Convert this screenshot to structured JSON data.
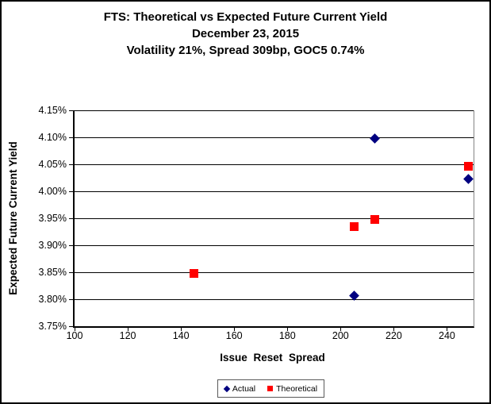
{
  "title": {
    "line1": "FTS: Theoretical vs Expected Future Current Yield",
    "line2": "December 23, 2015",
    "line3": "Volatility 21%, Spread 309bp, GOC5 0.74%"
  },
  "chart_data": {
    "type": "scatter",
    "title": "FTS: Theoretical vs Expected Future Current Yield",
    "subtitle": "December 23, 2015",
    "subtitle2": "Volatility 21%, Spread 309bp, GOC5 0.74%",
    "xlabel": "Issue Reset Spread",
    "ylabel": "Expected Future Current Yield",
    "xlim": [
      100,
      250
    ],
    "ylim": [
      3.75,
      4.15
    ],
    "grid": true,
    "legend_position": "bottom",
    "x_ticks": [
      {
        "v": 100,
        "label": "100"
      },
      {
        "v": 120,
        "label": "120"
      },
      {
        "v": 140,
        "label": "140"
      },
      {
        "v": 160,
        "label": "160"
      },
      {
        "v": 180,
        "label": "180"
      },
      {
        "v": 200,
        "label": "200"
      },
      {
        "v": 220,
        "label": "220"
      },
      {
        "v": 240,
        "label": "240"
      }
    ],
    "y_ticks": [
      {
        "v": 4.15,
        "label": "4.15%"
      },
      {
        "v": 4.1,
        "label": "4.10%"
      },
      {
        "v": 4.05,
        "label": "4.05%"
      },
      {
        "v": 4.0,
        "label": "4.00%"
      },
      {
        "v": 3.95,
        "label": "3.95%"
      },
      {
        "v": 3.9,
        "label": "3.90%"
      },
      {
        "v": 3.85,
        "label": "3.85%"
      },
      {
        "v": 3.8,
        "label": "3.80%"
      },
      {
        "v": 3.75,
        "label": "3.75%"
      }
    ],
    "series": [
      {
        "name": "Actual",
        "marker": "diamond",
        "color": "#000080",
        "points": [
          {
            "x": 205,
            "y": 3.807
          },
          {
            "x": 213,
            "y": 4.098
          },
          {
            "x": 248,
            "y": 4.023
          }
        ]
      },
      {
        "name": "Theoretical",
        "marker": "square",
        "color": "#ff0000",
        "points": [
          {
            "x": 145,
            "y": 3.848
          },
          {
            "x": 205,
            "y": 3.934
          },
          {
            "x": 213,
            "y": 3.948
          },
          {
            "x": 248,
            "y": 4.047
          }
        ]
      }
    ],
    "colors": {
      "gridline": "#000000",
      "plot_border_right": "#858585",
      "axis": "#000000"
    }
  }
}
